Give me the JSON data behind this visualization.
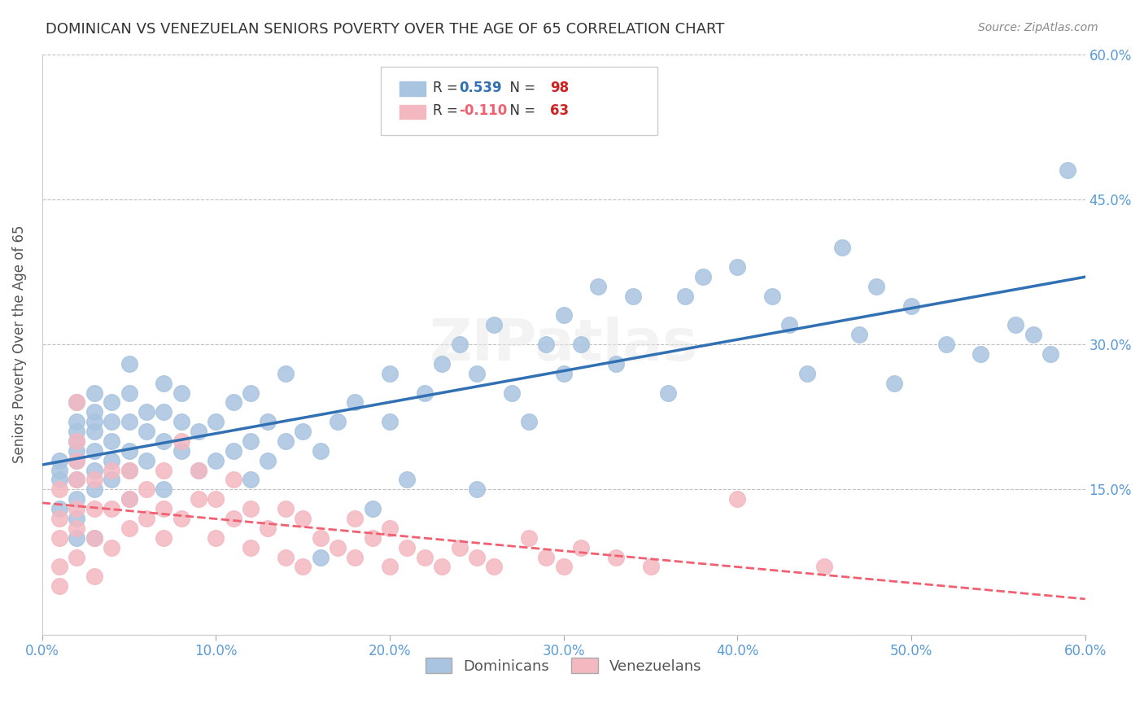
{
  "title": "DOMINICAN VS VENEZUELAN SENIORS POVERTY OVER THE AGE OF 65 CORRELATION CHART",
  "source": "Source: ZipAtlas.com",
  "ylabel": "Seniors Poverty Over the Age of 65",
  "xlabel": "",
  "xlim": [
    0.0,
    0.6
  ],
  "ylim": [
    0.0,
    0.6
  ],
  "xticks": [
    0.0,
    0.1,
    0.2,
    0.3,
    0.4,
    0.5,
    0.6
  ],
  "yticks": [
    0.0,
    0.15,
    0.3,
    0.45,
    0.6
  ],
  "ytick_labels": [
    "",
    "15.0%",
    "30.0%",
    "45.0%",
    "60.0%"
  ],
  "xtick_labels": [
    "0.0%",
    "10.0%",
    "20.0%",
    "30.0%",
    "40.0%",
    "50.0%",
    "60.0%"
  ],
  "axis_color": "#5b9bd5",
  "grid_color": "#c0c0c0",
  "background_color": "#ffffff",
  "dominican_color": "#a8c4e0",
  "venezuelan_color": "#f4b8c1",
  "line_dominican_color": "#3070b3",
  "line_venezuelan_color": "#f06070",
  "dominican_R": 0.539,
  "dominican_N": 98,
  "venezuelan_R": -0.11,
  "venezuelan_N": 63,
  "legend_labels": [
    "Dominicans",
    "Venezuelans"
  ],
  "watermark": "ZIPatlas",
  "dominican_x": [
    0.01,
    0.01,
    0.01,
    0.01,
    0.02,
    0.02,
    0.02,
    0.02,
    0.02,
    0.02,
    0.02,
    0.02,
    0.02,
    0.02,
    0.03,
    0.03,
    0.03,
    0.03,
    0.03,
    0.03,
    0.03,
    0.03,
    0.04,
    0.04,
    0.04,
    0.04,
    0.04,
    0.05,
    0.05,
    0.05,
    0.05,
    0.05,
    0.05,
    0.06,
    0.06,
    0.06,
    0.07,
    0.07,
    0.07,
    0.07,
    0.08,
    0.08,
    0.08,
    0.09,
    0.09,
    0.1,
    0.1,
    0.11,
    0.11,
    0.12,
    0.12,
    0.12,
    0.13,
    0.13,
    0.14,
    0.14,
    0.15,
    0.16,
    0.16,
    0.17,
    0.18,
    0.19,
    0.2,
    0.2,
    0.21,
    0.22,
    0.23,
    0.24,
    0.25,
    0.25,
    0.26,
    0.27,
    0.28,
    0.29,
    0.3,
    0.3,
    0.31,
    0.32,
    0.33,
    0.34,
    0.36,
    0.37,
    0.38,
    0.4,
    0.42,
    0.43,
    0.44,
    0.46,
    0.47,
    0.48,
    0.49,
    0.5,
    0.52,
    0.54,
    0.56,
    0.57,
    0.58,
    0.59
  ],
  "dominican_y": [
    0.13,
    0.16,
    0.17,
    0.18,
    0.1,
    0.12,
    0.14,
    0.16,
    0.18,
    0.19,
    0.2,
    0.21,
    0.22,
    0.24,
    0.1,
    0.15,
    0.17,
    0.19,
    0.21,
    0.22,
    0.23,
    0.25,
    0.16,
    0.18,
    0.2,
    0.22,
    0.24,
    0.14,
    0.17,
    0.19,
    0.22,
    0.25,
    0.28,
    0.18,
    0.21,
    0.23,
    0.15,
    0.2,
    0.23,
    0.26,
    0.19,
    0.22,
    0.25,
    0.17,
    0.21,
    0.18,
    0.22,
    0.19,
    0.24,
    0.16,
    0.2,
    0.25,
    0.18,
    0.22,
    0.2,
    0.27,
    0.21,
    0.08,
    0.19,
    0.22,
    0.24,
    0.13,
    0.22,
    0.27,
    0.16,
    0.25,
    0.28,
    0.3,
    0.15,
    0.27,
    0.32,
    0.25,
    0.22,
    0.3,
    0.27,
    0.33,
    0.3,
    0.36,
    0.28,
    0.35,
    0.25,
    0.35,
    0.37,
    0.38,
    0.35,
    0.32,
    0.27,
    0.4,
    0.31,
    0.36,
    0.26,
    0.34,
    0.3,
    0.29,
    0.32,
    0.31,
    0.29,
    0.48
  ],
  "venezuelan_x": [
    0.01,
    0.01,
    0.01,
    0.01,
    0.01,
    0.02,
    0.02,
    0.02,
    0.02,
    0.02,
    0.02,
    0.02,
    0.03,
    0.03,
    0.03,
    0.03,
    0.04,
    0.04,
    0.04,
    0.05,
    0.05,
    0.05,
    0.06,
    0.06,
    0.07,
    0.07,
    0.07,
    0.08,
    0.08,
    0.09,
    0.09,
    0.1,
    0.1,
    0.11,
    0.11,
    0.12,
    0.12,
    0.13,
    0.14,
    0.14,
    0.15,
    0.15,
    0.16,
    0.17,
    0.18,
    0.18,
    0.19,
    0.2,
    0.2,
    0.21,
    0.22,
    0.23,
    0.24,
    0.25,
    0.26,
    0.28,
    0.29,
    0.3,
    0.31,
    0.33,
    0.35,
    0.4,
    0.45
  ],
  "venezuelan_y": [
    0.05,
    0.07,
    0.1,
    0.12,
    0.15,
    0.08,
    0.11,
    0.13,
    0.16,
    0.18,
    0.2,
    0.24,
    0.06,
    0.1,
    0.13,
    0.16,
    0.09,
    0.13,
    0.17,
    0.11,
    0.14,
    0.17,
    0.12,
    0.15,
    0.1,
    0.13,
    0.17,
    0.12,
    0.2,
    0.14,
    0.17,
    0.1,
    0.14,
    0.12,
    0.16,
    0.09,
    0.13,
    0.11,
    0.08,
    0.13,
    0.07,
    0.12,
    0.1,
    0.09,
    0.08,
    0.12,
    0.1,
    0.07,
    0.11,
    0.09,
    0.08,
    0.07,
    0.09,
    0.08,
    0.07,
    0.1,
    0.08,
    0.07,
    0.09,
    0.08,
    0.07,
    0.14,
    0.07
  ]
}
